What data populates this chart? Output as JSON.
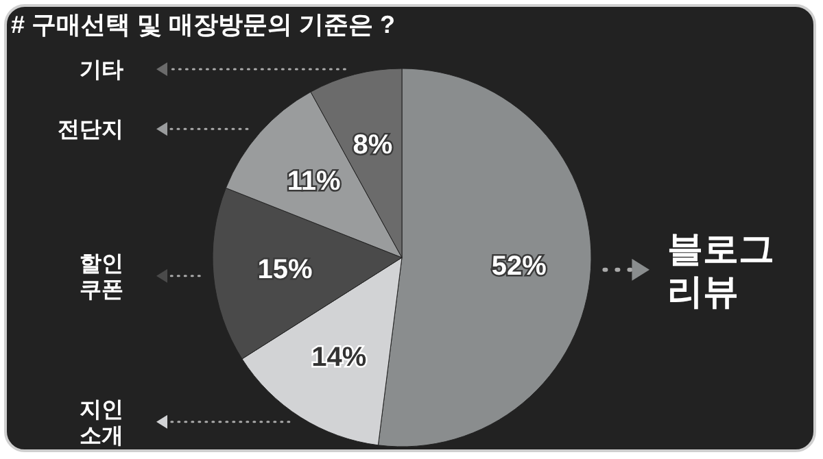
{
  "chart_data": {
    "type": "pie",
    "title": "# 구매선택 및 매장방문의 기준은 ?",
    "categories": [
      "블로그 리뷰",
      "지인 소개",
      "할인 쿠폰",
      "전단지",
      "기타"
    ],
    "values": [
      52,
      14,
      15,
      11,
      8
    ],
    "colors": [
      "#8a8d8e",
      "#d2d3d5",
      "#4a4a4a",
      "#9a9c9d",
      "#6b6b6b"
    ],
    "value_labels": [
      "52%",
      "14%",
      "15%",
      "11%",
      "8%"
    ],
    "legend": "left"
  }
}
